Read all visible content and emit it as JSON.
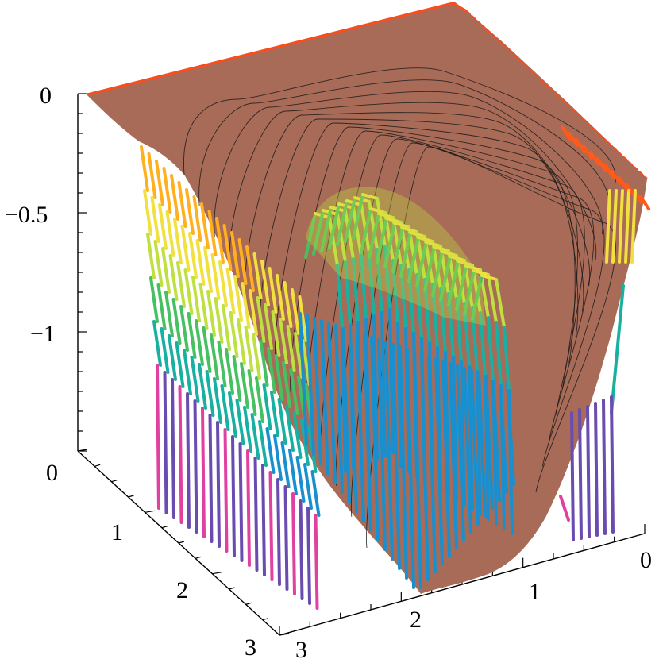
{
  "chart_data": {
    "type": "surface3d",
    "title": "",
    "z_axis": {
      "label": "",
      "ticks": [
        "0",
        "−0.5",
        "−1"
      ],
      "values": [
        0,
        -0.5,
        -1
      ]
    },
    "left_axis": {
      "label": "",
      "ticks": [
        "0",
        "1",
        "2",
        "3"
      ],
      "values": [
        0,
        1,
        2,
        3
      ]
    },
    "right_axis": {
      "label": "",
      "ticks": [
        "3",
        "2",
        "1",
        "0"
      ],
      "values": [
        3,
        2,
        1,
        0
      ]
    },
    "surface_color": "#a86b57",
    "contour_color": "#1a1a1a",
    "edge_color": "#ff4a1a",
    "stripe_palette": [
      "#ff5a1a",
      "#ffb020",
      "#f0e040",
      "#bfe040",
      "#46c060",
      "#18b0a0",
      "#1890d0",
      "#3a6cc8",
      "#6a4cb0",
      "#e040a0"
    ],
    "grid": false,
    "legend": "none"
  }
}
